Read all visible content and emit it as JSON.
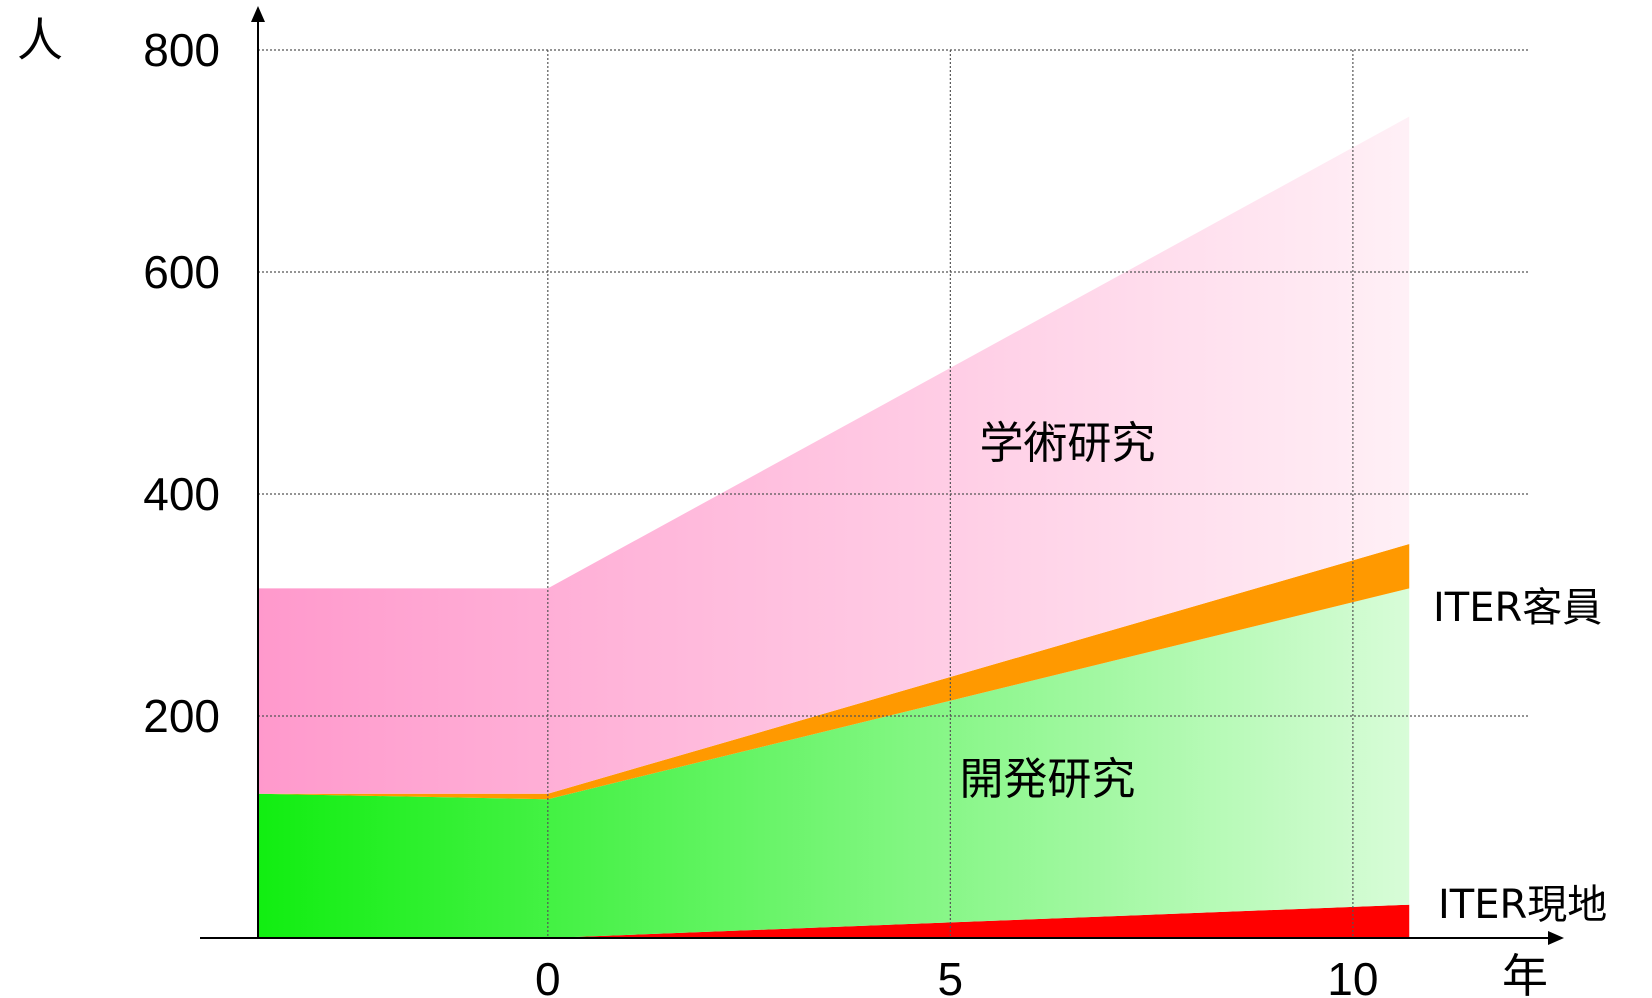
{
  "chart_data": {
    "type": "area",
    "ylabel": "人",
    "xlabel": "年",
    "xlim": [
      -3.6,
      12.2
    ],
    "ylim": [
      0,
      800
    ],
    "x_ticks": [
      0,
      5,
      10
    ],
    "y_ticks": [
      200,
      400,
      600,
      800
    ],
    "grid": true,
    "series": [
      {
        "name": "ITER現地",
        "points": [
          [
            -3.6,
            0
          ],
          [
            0,
            0
          ],
          [
            10.7,
            30
          ]
        ],
        "color": "#ff0000"
      },
      {
        "name": "開発研究",
        "points": [
          [
            -3.6,
            130
          ],
          [
            0,
            125
          ],
          [
            10.7,
            285
          ]
        ],
        "color": "#22ff22"
      },
      {
        "name": "ITER客員",
        "points": [
          [
            -3.6,
            0
          ],
          [
            0,
            5
          ],
          [
            10.7,
            40
          ]
        ],
        "color": "#ff9900"
      },
      {
        "name": "学術研究",
        "points": [
          [
            -3.6,
            185
          ],
          [
            0,
            185
          ],
          [
            10.7,
            385
          ]
        ],
        "color": "#ff99cc"
      }
    ]
  }
}
